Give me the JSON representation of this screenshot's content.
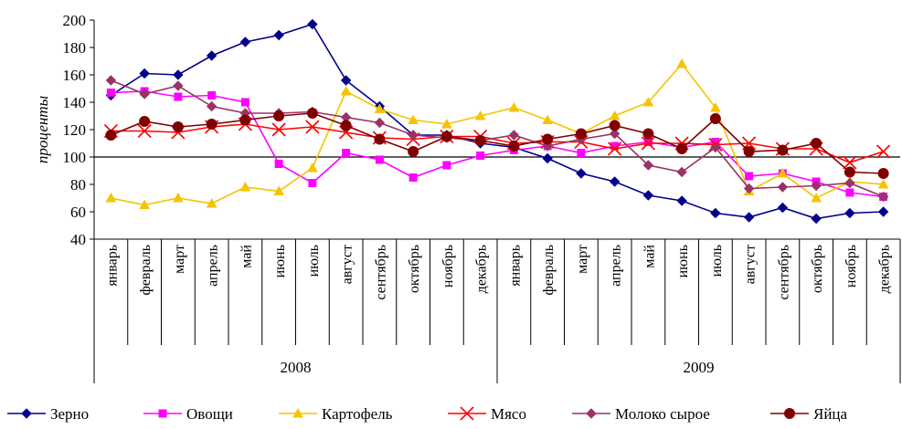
{
  "chart_data": {
    "type": "line",
    "title": "",
    "xlabel": "",
    "ylabel": "проценты",
    "ylim": [
      40,
      200
    ],
    "yticks": [
      40,
      60,
      80,
      100,
      120,
      140,
      160,
      180,
      200
    ],
    "grid": false,
    "reference_line": 100,
    "legend_position": "bottom",
    "years": [
      {
        "label": "2008",
        "months": 12
      },
      {
        "label": "2009",
        "months": 12
      }
    ],
    "categories": [
      "январь",
      "февраль",
      "март",
      "апрель",
      "май",
      "июнь",
      "июль",
      "август",
      "сентябрь",
      "октябрь",
      "ноябрь",
      "декабрь",
      "январь",
      "февраль",
      "март",
      "апрель",
      "май",
      "июнь",
      "июль",
      "август",
      "сентябрь",
      "октябрь",
      "ноябрь",
      "декабрь"
    ],
    "series": [
      {
        "name": "Зерно",
        "color": "#00008B",
        "marker": "diamond",
        "values": [
          145,
          161,
          160,
          174,
          184,
          189,
          197,
          156,
          137,
          116,
          116,
          110,
          107,
          99,
          88,
          82,
          72,
          68,
          59,
          56,
          63,
          55,
          59,
          60
        ]
      },
      {
        "name": "Овощи",
        "color": "#FF00FF",
        "marker": "square",
        "values": [
          147,
          148,
          144,
          145,
          140,
          95,
          81,
          103,
          98,
          85,
          94,
          101,
          105,
          108,
          103,
          108,
          111,
          107,
          111,
          86,
          88,
          82,
          74,
          71
        ]
      },
      {
        "name": "Картофель",
        "color": "#F5C400",
        "marker": "triangle",
        "values": [
          70,
          65,
          70,
          66,
          78,
          75,
          92,
          148,
          135,
          127,
          124,
          130,
          136,
          127,
          117,
          130,
          140,
          168,
          136,
          75,
          88,
          70,
          82,
          80
        ]
      },
      {
        "name": "Мясо",
        "color": "#FF0000",
        "marker": "x",
        "values": [
          119,
          119,
          118,
          122,
          124,
          120,
          122,
          118,
          114,
          113,
          115,
          115,
          110,
          111,
          111,
          106,
          110,
          110,
          109,
          110,
          106,
          106,
          96,
          104
        ]
      },
      {
        "name": "Молоко сырое",
        "color": "#993366",
        "marker": "diamond",
        "values": [
          156,
          146,
          152,
          137,
          132,
          132,
          133,
          129,
          125,
          116,
          114,
          112,
          116,
          108,
          113,
          117,
          94,
          89,
          107,
          77,
          78,
          79,
          81,
          71
        ]
      },
      {
        "name": "Яйца",
        "color": "#800000",
        "marker": "circle",
        "values": [
          116,
          126,
          122,
          124,
          127,
          130,
          132,
          123,
          113,
          104,
          115,
          112,
          108,
          113,
          117,
          123,
          117,
          106,
          128,
          104,
          105,
          110,
          89,
          88
        ]
      }
    ]
  }
}
